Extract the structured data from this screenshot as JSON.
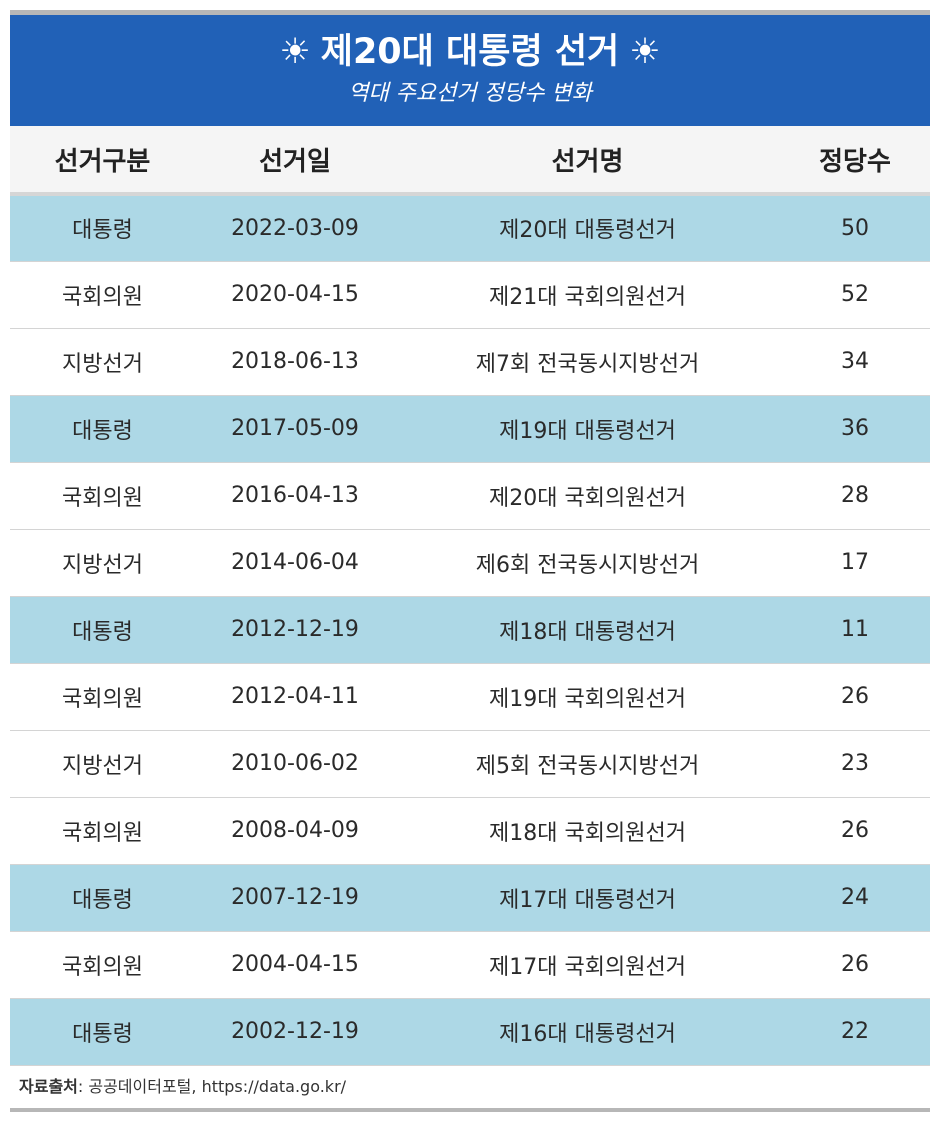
{
  "header": {
    "sun_left": "☀",
    "title": "제20대 대통령 선거",
    "sun_right": "☀",
    "subtitle": "역대 주요선거 정당수 변화"
  },
  "table": {
    "columns": [
      "선거구분",
      "선거일",
      "선거명",
      "정당수"
    ],
    "rows": [
      {
        "type": "대통령",
        "date": "2022-03-09",
        "name": "제20대 대통령선거",
        "parties": "50",
        "highlight": true
      },
      {
        "type": "국회의원",
        "date": "2020-04-15",
        "name": "제21대 국회의원선거",
        "parties": "52",
        "highlight": false
      },
      {
        "type": "지방선거",
        "date": "2018-06-13",
        "name": "제7회 전국동시지방선거",
        "parties": "34",
        "highlight": false
      },
      {
        "type": "대통령",
        "date": "2017-05-09",
        "name": "제19대 대통령선거",
        "parties": "36",
        "highlight": true
      },
      {
        "type": "국회의원",
        "date": "2016-04-13",
        "name": "제20대 국회의원선거",
        "parties": "28",
        "highlight": false
      },
      {
        "type": "지방선거",
        "date": "2014-06-04",
        "name": "제6회 전국동시지방선거",
        "parties": "17",
        "highlight": false
      },
      {
        "type": "대통령",
        "date": "2012-12-19",
        "name": "제18대 대통령선거",
        "parties": "11",
        "highlight": true
      },
      {
        "type": "국회의원",
        "date": "2012-04-11",
        "name": "제19대 국회의원선거",
        "parties": "26",
        "highlight": false
      },
      {
        "type": "지방선거",
        "date": "2010-06-02",
        "name": "제5회 전국동시지방선거",
        "parties": "23",
        "highlight": false
      },
      {
        "type": "국회의원",
        "date": "2008-04-09",
        "name": "제18대 국회의원선거",
        "parties": "26",
        "highlight": false
      },
      {
        "type": "대통령",
        "date": "2007-12-19",
        "name": "제17대 대통령선거",
        "parties": "24",
        "highlight": true
      },
      {
        "type": "국회의원",
        "date": "2004-04-15",
        "name": "제17대 국회의원선거",
        "parties": "26",
        "highlight": false
      },
      {
        "type": "대통령",
        "date": "2002-12-19",
        "name": "제16대 대통령선거",
        "parties": "22",
        "highlight": true
      }
    ]
  },
  "footer": {
    "source_label": "자료출처",
    "source_text": ": 공공데이터포털, https://data.go.kr/"
  },
  "colors": {
    "banner": "#2161b7",
    "highlight_row": "#add8e6",
    "header_row": "#f5f5f5"
  }
}
